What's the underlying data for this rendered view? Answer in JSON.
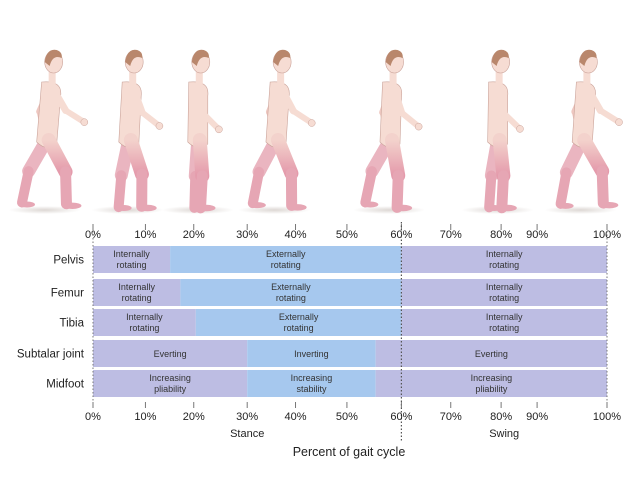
{
  "ticks": [
    "0%",
    "10%",
    "20%",
    "30%",
    "40%",
    "50%",
    "60%",
    "70%",
    "80%",
    "90%",
    "100%"
  ],
  "tick_values": [
    0,
    10,
    20,
    30,
    40,
    50,
    60,
    70,
    80,
    90,
    100
  ],
  "tick_pos": [
    0,
    10.2,
    19.6,
    30,
    39.4,
    49.4,
    60,
    69.6,
    79.4,
    86.4,
    100
  ],
  "figure_positions": [
    7,
    20,
    31,
    43,
    61,
    78,
    91
  ],
  "phases": [
    {
      "label": "Stance",
      "center": 30
    },
    {
      "label": "Swing",
      "center": 80
    }
  ],
  "axis_title": "Percent of gait cycle",
  "rows": [
    {
      "label": "Pelvis",
      "segments": [
        {
          "start": 0,
          "end": 15,
          "line1": "Internally",
          "line2": "rotating",
          "color": "#bdbde3"
        },
        {
          "start": 15,
          "end": 60,
          "line1": "Externally",
          "line2": "rotating",
          "color": "#a6c8ee"
        },
        {
          "start": 60,
          "end": 100,
          "line1": "Internally",
          "line2": "rotating",
          "color": "#bdbde3"
        }
      ]
    },
    {
      "label": "Femur",
      "segments": [
        {
          "start": 0,
          "end": 17,
          "line1": "Internally",
          "line2": "rotating",
          "color": "#bdbde3"
        },
        {
          "start": 17,
          "end": 60,
          "line1": "Externally",
          "line2": "rotating",
          "color": "#a6c8ee"
        },
        {
          "start": 60,
          "end": 100,
          "line1": "Internally",
          "line2": "rotating",
          "color": "#bdbde3"
        }
      ]
    },
    {
      "label": "Tibia",
      "segments": [
        {
          "start": 0,
          "end": 20,
          "line1": "Internally",
          "line2": "rotating",
          "color": "#bdbde3"
        },
        {
          "start": 20,
          "end": 60,
          "line1": "Externally",
          "line2": "rotating",
          "color": "#a6c8ee"
        },
        {
          "start": 60,
          "end": 100,
          "line1": "Internally",
          "line2": "rotating",
          "color": "#bdbde3"
        }
      ]
    },
    {
      "label": "Subtalar joint",
      "segments": [
        {
          "start": 0,
          "end": 30,
          "line1": "Everting",
          "line2": "",
          "color": "#bdbde3"
        },
        {
          "start": 30,
          "end": 55,
          "line1": "Inverting",
          "line2": "",
          "color": "#a6c8ee"
        },
        {
          "start": 55,
          "end": 100,
          "line1": "Everting",
          "line2": "",
          "color": "#bdbde3"
        }
      ]
    },
    {
      "label": "Midfoot",
      "segments": [
        {
          "start": 0,
          "end": 30,
          "line1": "Increasing",
          "line2": "pliability",
          "color": "#bdbde3"
        },
        {
          "start": 30,
          "end": 55,
          "line1": "Increasing",
          "line2": "stability",
          "color": "#a6c8ee"
        },
        {
          "start": 55,
          "end": 100,
          "line1": "Increasing",
          "line2": "pliability",
          "color": "#bdbde3"
        }
      ]
    }
  ],
  "colors": {
    "skin": "#f6dcd3",
    "skin_stroke": "#caa39a",
    "leg_pink": "#e6a6b4",
    "hair": "#b9876c",
    "row_bg": "#bdbde3",
    "highlight": "#a6c8ee",
    "divider": "#555555"
  }
}
